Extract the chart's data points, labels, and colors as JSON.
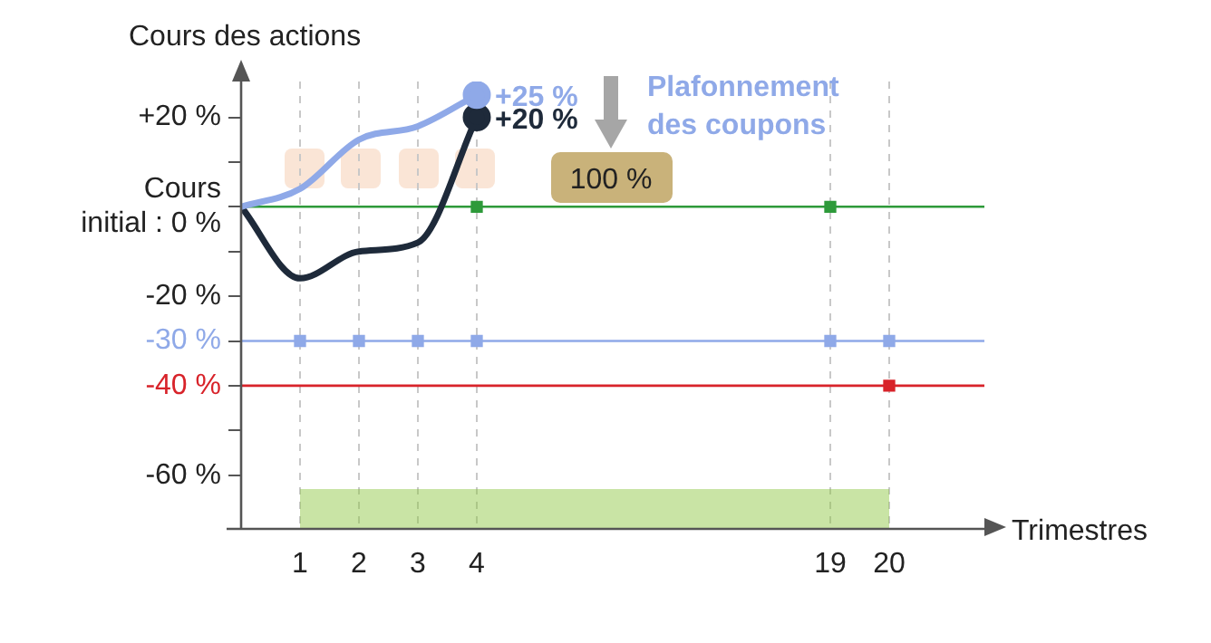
{
  "chart_data": {
    "type": "line",
    "ylabel": "Cours des actions",
    "xlabel": "Trimestres",
    "categories": [
      null,
      "1",
      "2",
      "3",
      "4",
      null,
      null,
      null,
      null,
      null,
      "19",
      "20",
      null
    ],
    "series": [
      {
        "color": "#8fa9e8",
        "values": [
          0,
          4,
          15,
          18,
          25,
          null,
          null,
          null,
          null,
          null,
          null,
          null,
          null
        ]
      },
      {
        "color": "#1e2a3a",
        "values": [
          0,
          -16,
          -10,
          -8,
          20,
          null,
          null,
          null,
          null,
          null,
          null,
          null,
          null
        ]
      },
      {
        "type": "scatter",
        "color": "#2e9a3a",
        "x": [
          "4",
          "19"
        ],
        "values": [
          0,
          0
        ]
      },
      {
        "type": "scatter",
        "color": "#8fa9e8",
        "x": [
          "1",
          "2",
          "3",
          "4",
          "19",
          "20"
        ],
        "values": [
          -30,
          -30,
          -30,
          -30,
          -30,
          -30
        ]
      },
      {
        "type": "scatter",
        "color": "#d8232a",
        "x": [
          "20"
        ],
        "values": [
          -40
        ]
      }
    ],
    "ylim": [
      -72,
      28
    ],
    "yticks": [
      {
        "value": 20,
        "label": "+20 %"
      },
      {
        "value": 10,
        "label": null
      },
      {
        "value": 0,
        "label": "Cours\ninitial : 0 %"
      },
      {
        "value": -10,
        "label": null
      },
      {
        "value": -20,
        "label": "-20 %"
      },
      {
        "value": -30,
        "label": "-30 %"
      },
      {
        "value": -40,
        "label": "-40 %"
      },
      {
        "value": -50,
        "label": null
      },
      {
        "value": -60,
        "label": "-60 %"
      }
    ],
    "ref_lines": [
      {
        "axis": "y",
        "value": 0,
        "label": null,
        "color": "#2e9a3a"
      },
      {
        "axis": "y",
        "value": -30,
        "label": null,
        "color": "#8fa9e8"
      },
      {
        "axis": "y",
        "value": -40,
        "label": null,
        "color": "#d8232a"
      }
    ],
    "bands": [
      {
        "axis": "x",
        "from": "1",
        "to": "20",
        "label": null,
        "color": "#8cc63f"
      }
    ],
    "annotations": [
      {
        "text": "+25 %",
        "x": "4",
        "y": 25
      },
      {
        "text": "+20 %",
        "x": "4",
        "y": 20
      },
      "Plafonnement\ndes coupons",
      "100 %"
    ],
    "grid": "x",
    "legend": false
  }
}
